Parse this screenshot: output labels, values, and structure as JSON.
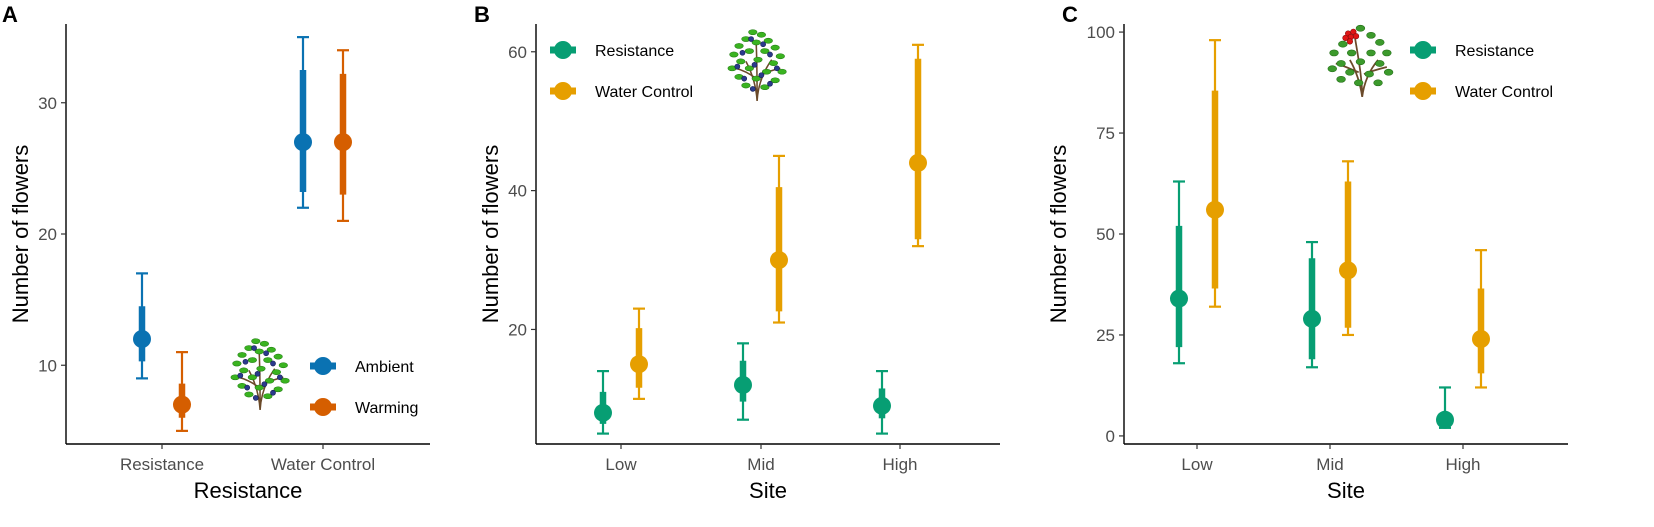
{
  "colors": {
    "ambient": "#0a72b2",
    "warming": "#d55e00",
    "resistance": "#079e73",
    "water_control": "#e69f00",
    "axis": "#000000",
    "tick_text": "#4d4d4d"
  },
  "icons": {
    "blueberry": "blueberry-shrub-icon",
    "lingonberry": "lingonberry-shrub-icon"
  },
  "chart_data": [
    {
      "type": "errorbar-point",
      "panel_label": "A",
      "xlabel": "Resistance",
      "ylabel": "Number of flowers",
      "categories": [
        "Resistance",
        "Water Control"
      ],
      "ylim": [
        4,
        36
      ],
      "yticks": [
        10,
        20,
        30
      ],
      "legend_position": "bottom-right",
      "icon": "blueberry",
      "series": [
        {
          "name": "Ambient",
          "color_key": "ambient",
          "points": [
            {
              "est": 12,
              "inner": [
                10.3,
                14.5
              ],
              "outer": [
                9,
                17
              ]
            },
            {
              "est": 27,
              "inner": [
                23.2,
                32.5
              ],
              "outer": [
                22,
                35
              ]
            }
          ]
        },
        {
          "name": "Warming",
          "color_key": "warming",
          "points": [
            {
              "est": 7,
              "inner": [
                6.0,
                8.6
              ],
              "outer": [
                5,
                11
              ]
            },
            {
              "est": 27,
              "inner": [
                23.0,
                32.2
              ],
              "outer": [
                21,
                34
              ]
            }
          ]
        }
      ]
    },
    {
      "type": "errorbar-point",
      "panel_label": "B",
      "xlabel": "Site",
      "ylabel": "Number of flowers",
      "categories": [
        "Low",
        "Mid",
        "High"
      ],
      "ylim": [
        3.5,
        64
      ],
      "yticks": [
        20,
        40,
        60
      ],
      "legend_position": "top-left",
      "icon": "blueberry",
      "series": [
        {
          "name": "Resistance",
          "color_key": "resistance",
          "points": [
            {
              "est": 8,
              "inner": [
                6.4,
                11.0
              ],
              "outer": [
                5,
                14
              ]
            },
            {
              "est": 12,
              "inner": [
                9.6,
                15.5
              ],
              "outer": [
                7,
                18
              ]
            },
            {
              "est": 9,
              "inner": [
                7.2,
                11.5
              ],
              "outer": [
                5,
                14
              ]
            }
          ]
        },
        {
          "name": "Water Control",
          "color_key": "water_control",
          "points": [
            {
              "est": 15,
              "inner": [
                11.6,
                20.2
              ],
              "outer": [
                10,
                23
              ]
            },
            {
              "est": 30,
              "inner": [
                22.6,
                40.5
              ],
              "outer": [
                21,
                45
              ]
            },
            {
              "est": 44,
              "inner": [
                33.0,
                59.0
              ],
              "outer": [
                32,
                61
              ]
            }
          ]
        }
      ]
    },
    {
      "type": "errorbar-point",
      "panel_label": "C",
      "xlabel": "Site",
      "ylabel": "Number of flowers",
      "categories": [
        "Low",
        "Mid",
        "High"
      ],
      "ylim": [
        -2,
        102
      ],
      "yticks": [
        0,
        25,
        50,
        75,
        100
      ],
      "legend_position": "top-right",
      "icon": "lingonberry",
      "series": [
        {
          "name": "Resistance",
          "color_key": "resistance",
          "points": [
            {
              "est": 34,
              "inner": [
                22.0,
                52.0
              ],
              "outer": [
                18,
                63
              ]
            },
            {
              "est": 29,
              "inner": [
                19.0,
                44.0
              ],
              "outer": [
                17,
                48
              ]
            },
            {
              "est": 4,
              "inner": [
                2.5,
                5.5
              ],
              "outer": [
                2,
                12
              ]
            }
          ]
        },
        {
          "name": "Water Control",
          "color_key": "water_control",
          "points": [
            {
              "est": 56,
              "inner": [
                36.5,
                85.5
              ],
              "outer": [
                32,
                98
              ]
            },
            {
              "est": 41,
              "inner": [
                26.8,
                63.0
              ],
              "outer": [
                25,
                68
              ]
            },
            {
              "est": 24,
              "inner": [
                15.5,
                36.5
              ],
              "outer": [
                12,
                46
              ]
            }
          ]
        }
      ]
    }
  ]
}
